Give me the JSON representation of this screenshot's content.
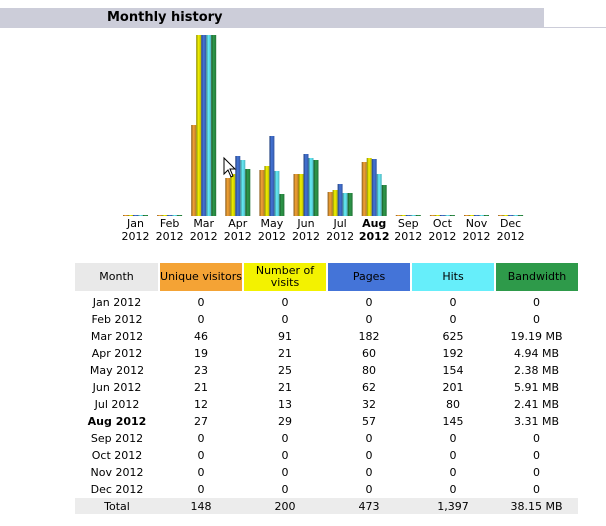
{
  "section": {
    "title": "Monthly history"
  },
  "colors": {
    "header_bar": "#cccdd9",
    "unique_visitors": "#f4a335",
    "visits": "#f3f200",
    "pages": "#4474d8",
    "hits": "#66eefa",
    "bandwidth": "#2e9a4a",
    "month_header": "#e9e9e9",
    "totals_row": "#ececec"
  },
  "chart_data": {
    "type": "bar",
    "categories": [
      "Jan 2012",
      "Feb 2012",
      "Mar 2012",
      "Apr 2012",
      "May 2012",
      "Jun 2012",
      "Jul 2012",
      "Aug 2012",
      "Sep 2012",
      "Oct 2012",
      "Nov 2012",
      "Dec 2012"
    ],
    "category_labels": [
      {
        "month": "Jan",
        "year": "2012",
        "bold": false
      },
      {
        "month": "Feb",
        "year": "2012",
        "bold": false
      },
      {
        "month": "Mar",
        "year": "2012",
        "bold": false
      },
      {
        "month": "Apr",
        "year": "2012",
        "bold": false
      },
      {
        "month": "May",
        "year": "2012",
        "bold": false
      },
      {
        "month": "Jun",
        "year": "2012",
        "bold": false
      },
      {
        "month": "Jul",
        "year": "2012",
        "bold": false
      },
      {
        "month": "Aug",
        "year": "2012",
        "bold": true
      },
      {
        "month": "Sep",
        "year": "2012",
        "bold": false
      },
      {
        "month": "Oct",
        "year": "2012",
        "bold": false
      },
      {
        "month": "Nov",
        "year": "2012",
        "bold": false
      },
      {
        "month": "Dec",
        "year": "2012",
        "bold": false
      }
    ],
    "series": [
      {
        "key": "unique_visitors",
        "values": [
          0,
          0,
          46,
          19,
          23,
          21,
          12,
          27,
          0,
          0,
          0,
          0
        ]
      },
      {
        "key": "visits",
        "values": [
          0,
          0,
          91,
          21,
          25,
          21,
          13,
          29,
          0,
          0,
          0,
          0
        ]
      },
      {
        "key": "pages",
        "values": [
          0,
          0,
          182,
          60,
          80,
          62,
          32,
          57,
          0,
          0,
          0,
          0
        ]
      },
      {
        "key": "hits",
        "values": [
          0,
          0,
          625,
          192,
          154,
          201,
          80,
          145,
          0,
          0,
          0,
          0
        ]
      },
      {
        "key": "bandwidth_mb",
        "values": [
          0,
          0,
          19.19,
          4.94,
          2.38,
          5.91,
          2.41,
          3.31,
          0,
          0,
          0,
          0
        ]
      }
    ],
    "title": "",
    "xlabel": "",
    "ylabel": ""
  },
  "table": {
    "headers": {
      "month": "Month",
      "unique_visitors": "Unique visitors",
      "visits": "Number of visits",
      "pages": "Pages",
      "hits": "Hits",
      "bandwidth": "Bandwidth"
    },
    "rows": [
      {
        "month": "Jan 2012",
        "unique": "0",
        "visits": "0",
        "pages": "0",
        "hits": "0",
        "bandwidth": "0",
        "bold": false
      },
      {
        "month": "Feb 2012",
        "unique": "0",
        "visits": "0",
        "pages": "0",
        "hits": "0",
        "bandwidth": "0",
        "bold": false
      },
      {
        "month": "Mar 2012",
        "unique": "46",
        "visits": "91",
        "pages": "182",
        "hits": "625",
        "bandwidth": "19.19 MB",
        "bold": false
      },
      {
        "month": "Apr 2012",
        "unique": "19",
        "visits": "21",
        "pages": "60",
        "hits": "192",
        "bandwidth": "4.94 MB",
        "bold": false
      },
      {
        "month": "May 2012",
        "unique": "23",
        "visits": "25",
        "pages": "80",
        "hits": "154",
        "bandwidth": "2.38 MB",
        "bold": false
      },
      {
        "month": "Jun 2012",
        "unique": "21",
        "visits": "21",
        "pages": "62",
        "hits": "201",
        "bandwidth": "5.91 MB",
        "bold": false
      },
      {
        "month": "Jul 2012",
        "unique": "12",
        "visits": "13",
        "pages": "32",
        "hits": "80",
        "bandwidth": "2.41 MB",
        "bold": false
      },
      {
        "month": "Aug 2012",
        "unique": "27",
        "visits": "29",
        "pages": "57",
        "hits": "145",
        "bandwidth": "3.31 MB",
        "bold": true
      },
      {
        "month": "Sep 2012",
        "unique": "0",
        "visits": "0",
        "pages": "0",
        "hits": "0",
        "bandwidth": "0",
        "bold": false
      },
      {
        "month": "Oct 2012",
        "unique": "0",
        "visits": "0",
        "pages": "0",
        "hits": "0",
        "bandwidth": "0",
        "bold": false
      },
      {
        "month": "Nov 2012",
        "unique": "0",
        "visits": "0",
        "pages": "0",
        "hits": "0",
        "bandwidth": "0",
        "bold": false
      },
      {
        "month": "Dec 2012",
        "unique": "0",
        "visits": "0",
        "pages": "0",
        "hits": "0",
        "bandwidth": "0",
        "bold": false
      }
    ],
    "total": {
      "label": "Total",
      "unique": "148",
      "visits": "200",
      "pages": "473",
      "hits": "1,397",
      "bandwidth": "38.15 MB"
    }
  }
}
